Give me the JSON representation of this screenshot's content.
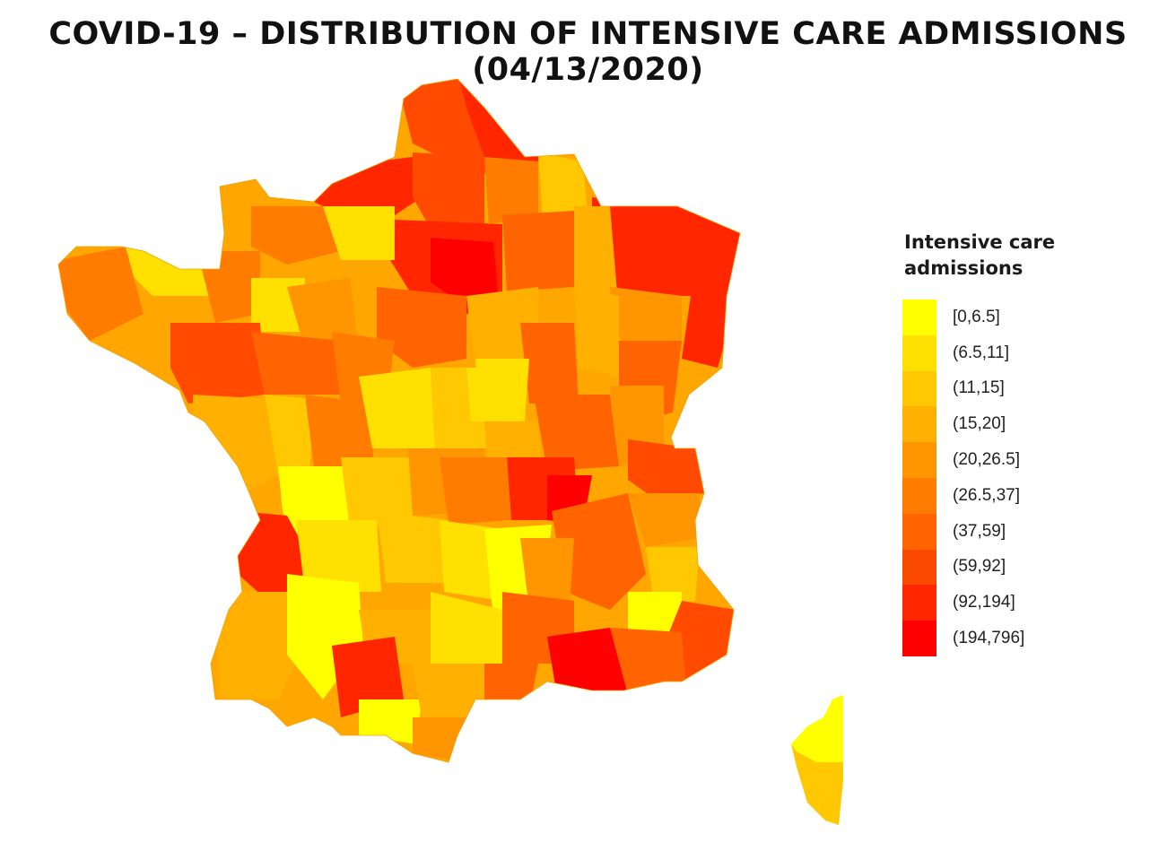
{
  "title": "COVID-19 – DISTRIBUTION OF INTENSIVE CARE ADMISSIONS (04/13/2020)",
  "legend": {
    "title": "Intensive care admissions",
    "items": [
      {
        "label": "[0,6.5]",
        "color": "#ffff00"
      },
      {
        "label": "(6.5,11]",
        "color": "#ffe000"
      },
      {
        "label": "(11,15]",
        "color": "#ffc800"
      },
      {
        "label": "(15,20]",
        "color": "#ffb000"
      },
      {
        "label": "(20,26.5]",
        "color": "#ff9500"
      },
      {
        "label": "(26.5,37]",
        "color": "#ff7c00"
      },
      {
        "label": "(37,59]",
        "color": "#ff6400"
      },
      {
        "label": "(59,92]",
        "color": "#f94a00"
      },
      {
        "label": "(92,194]",
        "color": "#ff2600"
      },
      {
        "label": "(194,796]",
        "color": "#ff0000"
      }
    ]
  }
}
